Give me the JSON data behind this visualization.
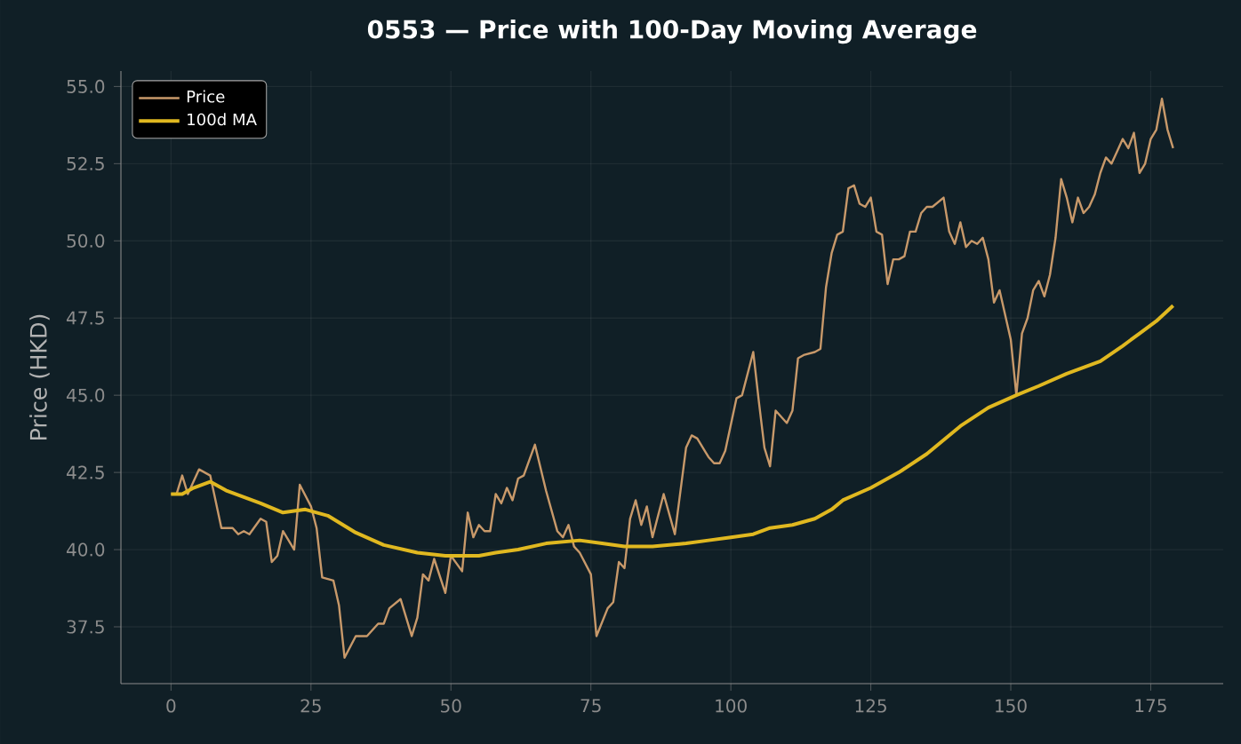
{
  "chart_data": {
    "type": "line",
    "title": "0553 — Price with 100-Day Moving Average",
    "ylabel": "Price (HKD)",
    "xlim": [
      -8.95,
      187.95
    ],
    "xticks": [
      0,
      25,
      50,
      75,
      100,
      125,
      150,
      175
    ],
    "ylim": [
      35.66,
      55.5
    ],
    "yticks": [
      {
        "value": 37.5,
        "label": "37.5"
      },
      {
        "value": 40,
        "label": "40.0"
      },
      {
        "value": 42.5,
        "label": "42.5"
      },
      {
        "value": 45,
        "label": "45.0"
      },
      {
        "value": 47.5,
        "label": "47.5"
      },
      {
        "value": 50,
        "label": "50.0"
      },
      {
        "value": 52.5,
        "label": "52.5"
      },
      {
        "value": 55,
        "label": "55.0"
      }
    ],
    "grid": true,
    "legend": "top left",
    "series": [
      {
        "name": "Price",
        "color": "#c8996a",
        "x": [
          0,
          1,
          2,
          3,
          5,
          7,
          9,
          11,
          12,
          13,
          14,
          16,
          17,
          18,
          19,
          20,
          22,
          23,
          25,
          26,
          27,
          29,
          30,
          31,
          33,
          35,
          37,
          38,
          39,
          41,
          43,
          44,
          45,
          46,
          47,
          49,
          50,
          52,
          53,
          54,
          55,
          56,
          57,
          58,
          59,
          60,
          61,
          62,
          63,
          65,
          67,
          69,
          70,
          71,
          72,
          73,
          75,
          76,
          78,
          79,
          80,
          81,
          82,
          83,
          84,
          85,
          86,
          88,
          90,
          92,
          93,
          94,
          96,
          97,
          98,
          99,
          101,
          102,
          104,
          105,
          106,
          107,
          108,
          110,
          111,
          112,
          113,
          115,
          116,
          117,
          118,
          119,
          120,
          121,
          122,
          123,
          124,
          125,
          126,
          127,
          128,
          129,
          130,
          131,
          132,
          133,
          134,
          135,
          136,
          138,
          139,
          140,
          141,
          142,
          143,
          144,
          145,
          146,
          147,
          148,
          150,
          151,
          152,
          153,
          154,
          155,
          156,
          157,
          158,
          159,
          160,
          161,
          162,
          163,
          164,
          165,
          166,
          167,
          168,
          169,
          170,
          171,
          172,
          173,
          174,
          175,
          176,
          177,
          178,
          179
        ],
        "values": [
          41.8,
          41.8,
          42.4,
          41.8,
          42.6,
          42.4,
          40.7,
          40.7,
          40.5,
          40.6,
          40.5,
          41.0,
          40.9,
          39.6,
          39.8,
          40.6,
          40.0,
          42.1,
          41.4,
          40.7,
          39.1,
          39.0,
          38.2,
          36.5,
          37.2,
          37.2,
          37.6,
          37.6,
          38.1,
          38.4,
          37.2,
          37.8,
          39.2,
          39.0,
          39.7,
          38.6,
          39.8,
          39.3,
          41.2,
          40.4,
          40.8,
          40.6,
          40.6,
          41.8,
          41.5,
          42.0,
          41.6,
          42.3,
          42.4,
          43.4,
          41.9,
          40.6,
          40.4,
          40.8,
          40.1,
          39.9,
          39.2,
          37.2,
          38.1,
          38.3,
          39.6,
          39.4,
          41.0,
          41.6,
          40.8,
          41.4,
          40.4,
          41.8,
          40.5,
          43.3,
          43.7,
          43.6,
          43.0,
          42.8,
          42.8,
          43.2,
          44.9,
          45.0,
          46.4,
          44.8,
          43.3,
          42.7,
          44.5,
          44.1,
          44.5,
          46.2,
          46.3,
          46.4,
          46.5,
          48.5,
          49.6,
          50.2,
          50.3,
          51.7,
          51.8,
          51.2,
          51.1,
          51.4,
          50.3,
          50.2,
          48.6,
          49.4,
          49.4,
          49.5,
          50.3,
          50.3,
          50.9,
          51.1,
          51.1,
          51.4,
          50.3,
          49.9,
          50.6,
          49.8,
          50.0,
          49.9,
          50.1,
          49.4,
          48.0,
          48.4,
          46.8,
          45.0,
          47.0,
          47.5,
          48.4,
          48.7,
          48.2,
          48.9,
          50.1,
          52.0,
          51.4,
          50.6,
          51.4,
          50.9,
          51.1,
          51.5,
          52.2,
          52.7,
          52.5,
          52.9,
          53.3,
          53.0,
          53.5,
          52.2,
          52.5,
          53.3,
          53.6,
          54.6,
          53.6,
          53.0
        ]
      },
      {
        "name": "100d MA",
        "color": "#e0b820",
        "x": [
          0,
          2,
          4,
          7,
          10,
          13,
          16,
          20,
          24,
          28,
          33,
          38,
          44,
          49,
          55,
          58,
          62,
          67,
          73,
          77,
          81,
          86,
          92,
          96,
          100,
          104,
          107,
          111,
          115,
          118,
          120,
          125,
          130,
          135,
          141,
          146,
          151,
          155,
          160,
          166,
          170,
          173,
          176,
          179
        ],
        "values": [
          41.8,
          41.8,
          42.0,
          42.2,
          41.9,
          41.7,
          41.5,
          41.2,
          41.3,
          41.1,
          40.55,
          40.15,
          39.9,
          39.8,
          39.8,
          39.9,
          40.0,
          40.2,
          40.3,
          40.2,
          40.1,
          40.1,
          40.2,
          40.3,
          40.4,
          40.5,
          40.7,
          40.8,
          41.0,
          41.3,
          41.6,
          42.0,
          42.5,
          43.1,
          44.0,
          44.6,
          45.0,
          45.3,
          45.7,
          46.1,
          46.6,
          47.0,
          47.4,
          47.9
        ]
      }
    ]
  }
}
